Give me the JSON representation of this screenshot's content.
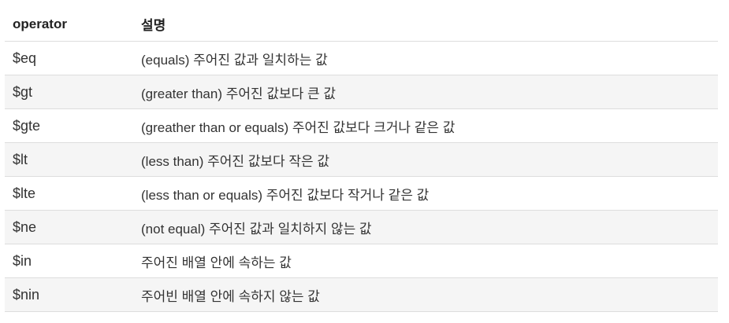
{
  "table": {
    "headers": [
      "operator",
      "설명"
    ],
    "rows": [
      {
        "operator": "$eq",
        "description": "(equals) 주어진 값과 일치하는 값"
      },
      {
        "operator": "$gt",
        "description": "(greater than) 주어진 값보다 큰 값"
      },
      {
        "operator": "$gte",
        "description": "(greather than or equals) 주어진 값보다 크거나 같은 값"
      },
      {
        "operator": "$lt",
        "description": "(less than) 주어진 값보다 작은 값"
      },
      {
        "operator": "$lte",
        "description": "(less than or equals) 주어진 값보다 작거나 같은 값"
      },
      {
        "operator": "$ne",
        "description": "(not equal) 주어진 값과 일치하지 않는 값"
      },
      {
        "operator": "$in",
        "description": "주어진 배열 안에 속하는 값"
      },
      {
        "operator": "$nin",
        "description": "주어빈 배열 안에 속하지 않는 값"
      }
    ]
  }
}
